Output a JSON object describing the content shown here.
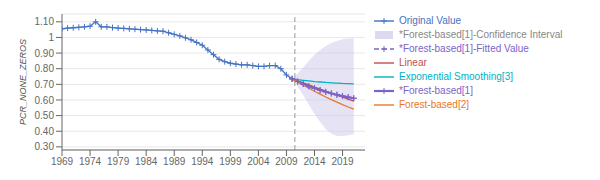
{
  "chart_data": {
    "type": "line",
    "ylabel": "PCR_NONE_ZEROS",
    "xlim": [
      1969,
      2023
    ],
    "xticks": [
      1969,
      1974,
      1979,
      1984,
      1989,
      1994,
      1999,
      2004,
      2009,
      2014,
      2019
    ],
    "ylim": [
      0.28,
      1.15
    ],
    "yticks": [
      {
        "value": 0.3,
        "label": "0.30"
      },
      {
        "value": 0.4,
        "label": "0.40"
      },
      {
        "value": 0.5,
        "label": "0.50"
      },
      {
        "value": 0.6,
        "label": "0.60"
      },
      {
        "value": 0.7,
        "label": "0.70"
      },
      {
        "value": 0.8,
        "label": "0.80"
      },
      {
        "value": 0.9,
        "label": "0.90"
      },
      1,
      {
        "value": 1.1,
        "label": "1.10"
      }
    ],
    "grid": "y",
    "legend": "right",
    "reference_lines": [
      {
        "x": 2010.5,
        "color": "#999999",
        "line_style": "dashed"
      }
    ],
    "series": [
      {
        "name": "Original Value",
        "color": "#4472c4",
        "line_style": "solid",
        "marker": "plus",
        "x": [
          1969,
          1970,
          1971,
          1972,
          1973,
          1974,
          1975,
          1976,
          1977,
          1978,
          1979,
          1980,
          1981,
          1982,
          1983,
          1984,
          1985,
          1986,
          1987,
          1988,
          1989,
          1990,
          1991,
          1992,
          1993,
          1994,
          1995,
          1996,
          1997,
          1998,
          1999,
          2000,
          2001,
          2002,
          2003,
          2004,
          2005,
          2006,
          2007,
          2008,
          2009,
          2010
        ],
        "values": [
          1.055,
          1.06,
          1.062,
          1.065,
          1.068,
          1.072,
          1.1,
          1.068,
          1.068,
          1.063,
          1.06,
          1.058,
          1.055,
          1.053,
          1.05,
          1.048,
          1.045,
          1.042,
          1.04,
          1.03,
          1.02,
          1.01,
          0.998,
          0.985,
          0.968,
          0.95,
          0.92,
          0.89,
          0.86,
          0.845,
          0.835,
          0.83,
          0.825,
          0.825,
          0.82,
          0.815,
          0.815,
          0.82,
          0.82,
          0.8,
          0.76,
          0.735
        ]
      },
      {
        "name": "*Forest-based[1]-Confidence Interval",
        "type": "band",
        "color": "#c8c0e8",
        "x": [
          2010,
          2011,
          2012,
          2013,
          2014,
          2015,
          2016,
          2017,
          2018,
          2019,
          2020,
          2021
        ],
        "lower": [
          0.735,
          0.685,
          0.63,
          0.57,
          0.51,
          0.46,
          0.415,
          0.385,
          0.37,
          0.37,
          0.375,
          0.38
        ],
        "upper": [
          0.735,
          0.77,
          0.81,
          0.85,
          0.89,
          0.92,
          0.945,
          0.965,
          0.978,
          0.988,
          0.993,
          0.995
        ]
      },
      {
        "name": "*Forest-based[1]-Fitted Value",
        "color": "#7b64c8",
        "line_style": "dashed",
        "marker": "plus",
        "x": [
          2010,
          2011,
          2012,
          2013,
          2014,
          2015,
          2016,
          2017,
          2018,
          2019,
          2020,
          2021
        ],
        "values": [
          0.735,
          0.718,
          0.702,
          0.688,
          0.675,
          0.663,
          0.652,
          0.642,
          0.633,
          0.625,
          0.618,
          0.611
        ]
      },
      {
        "name": "Linear",
        "color": "#c0504d",
        "line_style": "solid",
        "x": [
          2010,
          2011,
          2012,
          2013,
          2014,
          2015,
          2016,
          2017,
          2018,
          2019,
          2020,
          2021
        ],
        "values": [
          0.735,
          0.722,
          0.709,
          0.696,
          0.683,
          0.67,
          0.657,
          0.644,
          0.631,
          0.618,
          0.605,
          0.592
        ]
      },
      {
        "name": "Exponential Smoothing[3]",
        "color": "#00b0c8",
        "line_style": "solid",
        "x": [
          2010,
          2011,
          2012,
          2013,
          2014,
          2015,
          2016,
          2017,
          2018,
          2019,
          2020,
          2021
        ],
        "values": [
          0.735,
          0.73,
          0.726,
          0.722,
          0.718,
          0.715,
          0.712,
          0.71,
          0.708,
          0.706,
          0.705,
          0.703
        ]
      },
      {
        "name": "*Forest-based[1]",
        "color": "#7b64c8",
        "line_style": "solid",
        "marker": "plus",
        "x": [
          2010,
          2011,
          2012,
          2013,
          2014,
          2015,
          2016,
          2017,
          2018,
          2019,
          2020,
          2021
        ],
        "values": [
          0.735,
          0.718,
          0.702,
          0.688,
          0.675,
          0.663,
          0.652,
          0.642,
          0.633,
          0.625,
          0.618,
          0.611
        ]
      },
      {
        "name": "Forest-based[2]",
        "color": "#e87828",
        "line_style": "solid",
        "x": [
          2010,
          2011,
          2012,
          2013,
          2014,
          2015,
          2016,
          2017,
          2018,
          2019,
          2020,
          2021
        ],
        "values": [
          0.735,
          0.715,
          0.695,
          0.675,
          0.656,
          0.637,
          0.619,
          0.602,
          0.586,
          0.57,
          0.555,
          0.541
        ]
      }
    ]
  }
}
